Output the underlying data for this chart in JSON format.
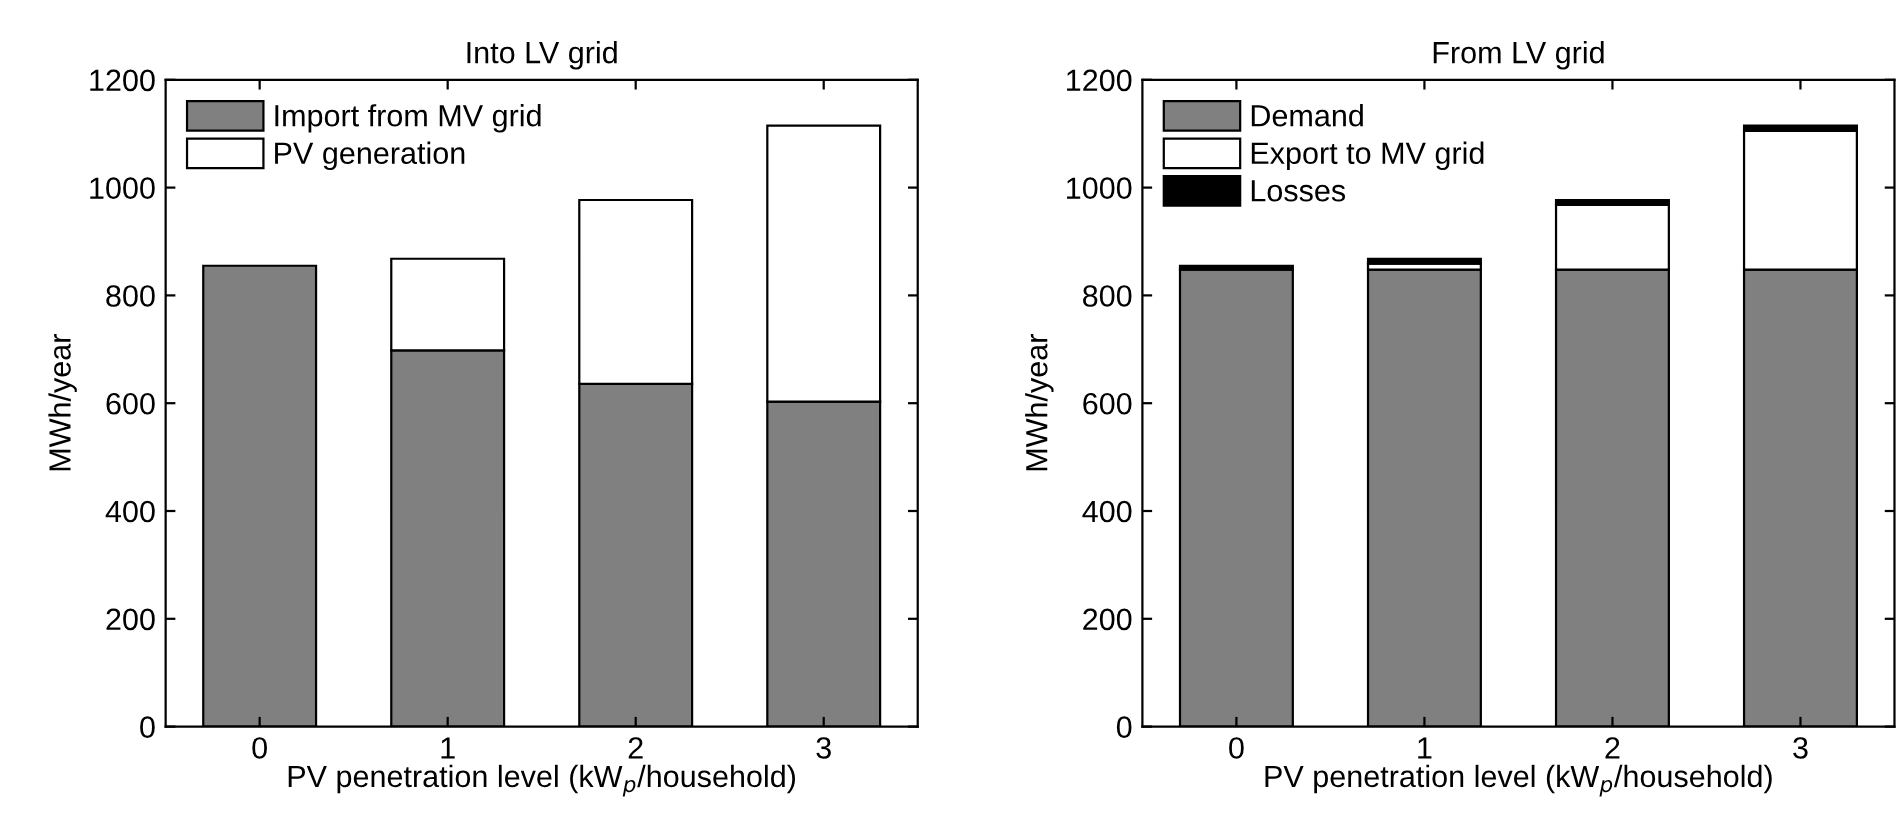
{
  "chart_data": [
    {
      "type": "bar",
      "title": "Into LV grid",
      "xlabel": "PV penetration level (kW$_{p}$/household)",
      "ylabel": "MWh/year",
      "categories": [
        "0",
        "1",
        "2",
        "3"
      ],
      "stacked": true,
      "ylim": [
        0,
        1200
      ],
      "yticks": [
        0,
        200,
        400,
        600,
        800,
        1000,
        1200
      ],
      "legend": "top left",
      "grid": false,
      "series": [
        {
          "name": "Import from MV grid",
          "color": "#808080",
          "values": [
            855,
            698,
            636,
            603
          ]
        },
        {
          "name": "PV generation",
          "color": "#ffffff",
          "values": [
            null,
            170,
            341,
            512
          ]
        }
      ]
    },
    {
      "type": "bar",
      "title": "From LV grid",
      "xlabel": "PV penetration level (kW$_{p}$/household)",
      "ylabel": "MWh/year",
      "categories": [
        "0",
        "1",
        "2",
        "3"
      ],
      "stacked": true,
      "ylim": [
        0,
        1200
      ],
      "yticks": [
        0,
        200,
        400,
        600,
        800,
        1000,
        1200
      ],
      "legend": "top left",
      "grid": false,
      "series": [
        {
          "name": "Demand",
          "color": "#808080",
          "values": [
            848,
            848,
            848,
            848
          ]
        },
        {
          "name": "Export to MV grid",
          "color": "#ffffff",
          "values": [
            null,
            11,
            120,
            257
          ]
        },
        {
          "name": "Losses",
          "color": "#000000",
          "values": [
            7,
            9,
            9,
            10
          ]
        }
      ]
    }
  ]
}
